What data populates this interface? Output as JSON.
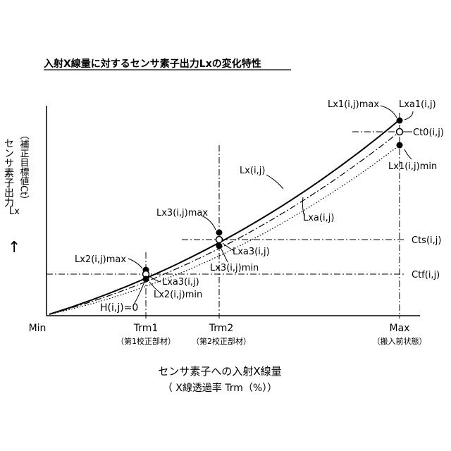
{
  "title": "入射X線量に対するセンサ素子出力Lxの変化特性",
  "y_axis": {
    "label_main": "センサ素子出力",
    "label_sub": "Lx",
    "label_paren": "（補正目標値Ct）",
    "arrow": "↑"
  },
  "x_axis": {
    "label_main": "センサ素子への入射X線量",
    "label_sub": "（ X線透過率 Trm（%））",
    "ticks": [
      {
        "label": "Min",
        "note": ""
      },
      {
        "label": "Trm1",
        "note": "（第1校正部材）"
      },
      {
        "label": "Trm2",
        "note": "（第2校正部材）"
      },
      {
        "label": "Max",
        "note": "（搬入前状態）"
      }
    ]
  },
  "levels": {
    "ctf": "Ctf(i,j)",
    "cts": "Cts(i,j)",
    "ct0": "Ct0(i,j)"
  },
  "curves": {
    "lx": "Lx(i,j)",
    "lxa": "Lxa(i,j)"
  },
  "points": {
    "lx1max": "Lx1(i,j)max",
    "lxa1": "Lxa1(i,j)",
    "lx1min": "Lx1(i,j)min",
    "lx3max": "Lx3(i,j)max",
    "lxa3_2": "Lxa3(i,j)",
    "lx3min": "Lx3(i,j)min",
    "lx2max": "Lx2(i,j)max",
    "lxa3_1": "Lxa3(i,j)",
    "lx2min": "Lx2(i,j)min"
  },
  "h_label": "H(i,j)≃0",
  "colors": {
    "line": "#000000",
    "background": "#ffffff"
  }
}
